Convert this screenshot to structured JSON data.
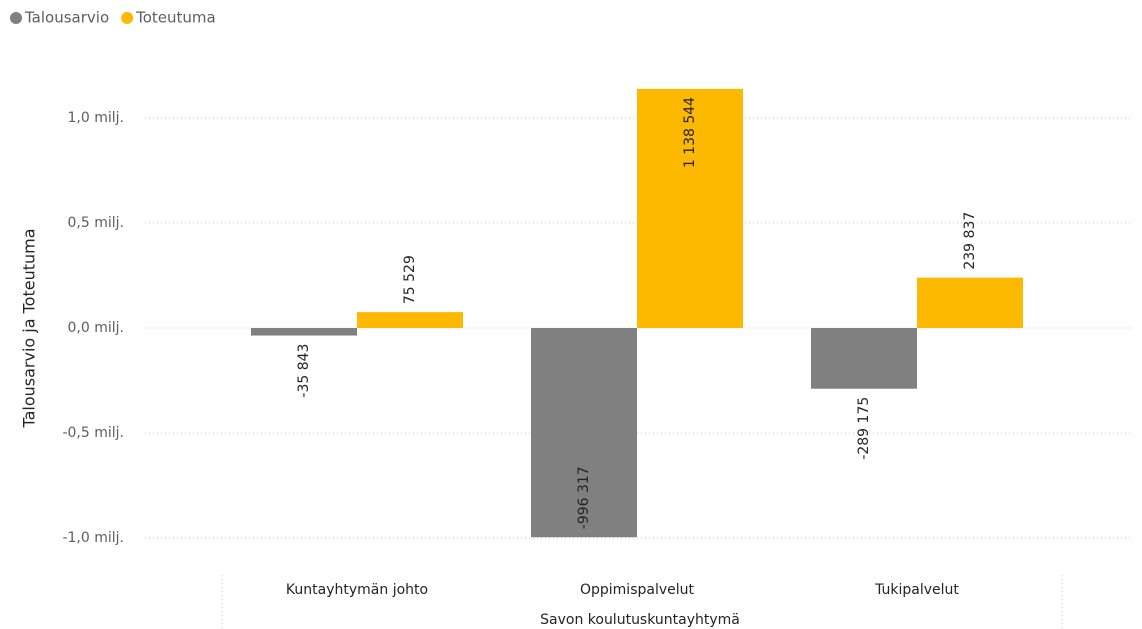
{
  "chart_data": {
    "type": "bar",
    "categories": [
      "Kuntayhtymän johto",
      "Oppimispalvelut",
      "Tukipalvelut"
    ],
    "series": [
      {
        "name": "Talousarvio",
        "color": "#808080",
        "values": [
          -35843,
          -996317,
          -289175
        ],
        "value_labels": [
          "-35 843",
          "-996 317",
          "-289 175"
        ]
      },
      {
        "name": "Toteutuma",
        "color": "#FDB900",
        "values": [
          75529,
          1138544,
          239837
        ],
        "value_labels": [
          "75 529",
          "1 138 544",
          "239 837"
        ]
      }
    ],
    "ylabel": "Talousarvio ja Toteutuma",
    "xlabel": "Savon koulutuskuntayhtymä",
    "ylim": [
      -1100000,
      1200000
    ],
    "yticks": [
      {
        "value": -1000000,
        "label": "-1,0 milj."
      },
      {
        "value": -500000,
        "label": "-0,5 milj."
      },
      {
        "value": 0,
        "label": "0,0 milj."
      },
      {
        "value": 500000,
        "label": "0,5 milj."
      },
      {
        "value": 1000000,
        "label": "1,0 milj."
      }
    ],
    "grid": true,
    "legend": "top-left"
  }
}
